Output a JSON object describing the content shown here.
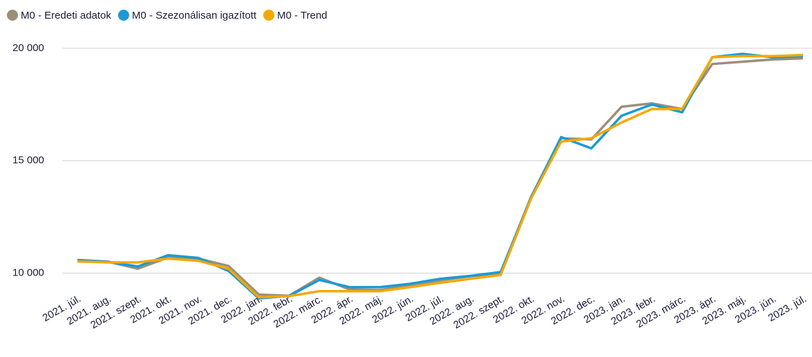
{
  "chart_data": {
    "type": "line",
    "categories": [
      "2021. júl.",
      "2021. aug.",
      "2021. szept.",
      "2021. okt.",
      "2021. nov.",
      "2021. dec.",
      "2022. jan.",
      "2022. febr.",
      "2022. márc.",
      "2022. ápr.",
      "2022. máj.",
      "2022. jún.",
      "2022. júl.",
      "2022. aug.",
      "2022. szept.",
      "2022. okt.",
      "2022. nov.",
      "2022. dec.",
      "2023. jan.",
      "2023. febr.",
      "2023. márc.",
      "2023. ápr.",
      "2023. máj.",
      "2023. jún.",
      "2023. júl."
    ],
    "series": [
      {
        "name": "M0 - Eredeti adatok",
        "color": "#9c8f7a",
        "values": [
          10590,
          10520,
          10200,
          10700,
          10650,
          10320,
          9050,
          9000,
          9800,
          9280,
          9250,
          9480,
          9680,
          9870,
          10000,
          13380,
          16000,
          15950,
          17400,
          17550,
          17300,
          19300,
          19400,
          19500,
          19550
        ]
      },
      {
        "name": "M0 - Szezonálisan igazított",
        "color": "#1a9ad6",
        "values": [
          10570,
          10500,
          10300,
          10800,
          10680,
          10100,
          8880,
          8990,
          9700,
          9380,
          9380,
          9530,
          9750,
          9880,
          10050,
          13350,
          16050,
          15550,
          17000,
          17500,
          17150,
          19600,
          19750,
          19600,
          19650
        ]
      },
      {
        "name": "M0 - Trend",
        "color": "#f5a800",
        "values": [
          10520,
          10480,
          10480,
          10650,
          10550,
          10200,
          8930,
          8980,
          9200,
          9200,
          9200,
          9380,
          9570,
          9750,
          9920,
          13300,
          15850,
          16000,
          16700,
          17300,
          17300,
          19600,
          19650,
          19650,
          19700
        ]
      }
    ],
    "ylim": [
      8500,
      20500
    ],
    "yticks": [
      {
        "value": 10000,
        "label": "10 000"
      },
      {
        "value": 15000,
        "label": "15 000"
      },
      {
        "value": 20000,
        "label": "20 000"
      }
    ],
    "grid": true,
    "legend": "top-left"
  }
}
